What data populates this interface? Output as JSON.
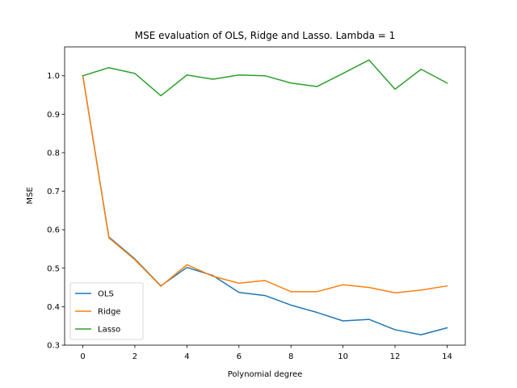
{
  "chart_data": {
    "type": "line",
    "title": "MSE evaluation of OLS, Ridge and Lasso. Lambda = 1",
    "xlabel": "Polynomial degree",
    "ylabel": "MSE",
    "x": [
      0,
      1,
      2,
      3,
      4,
      5,
      6,
      7,
      8,
      9,
      10,
      11,
      12,
      13,
      14
    ],
    "xlim": [
      -0.7,
      14.7
    ],
    "ylim": [
      0.3,
      1.075
    ],
    "xticks": [
      0,
      2,
      4,
      6,
      8,
      10,
      12,
      14
    ],
    "yticks": [
      0.3,
      0.4,
      0.5,
      0.6,
      0.7,
      0.8,
      0.9,
      1.0
    ],
    "grid": false,
    "legend_position": "lower-left",
    "series": [
      {
        "name": "OLS",
        "color": "#1f77b4",
        "values": [
          1.0,
          0.581,
          0.524,
          0.454,
          0.502,
          0.481,
          0.437,
          0.429,
          0.404,
          0.385,
          0.363,
          0.367,
          0.34,
          0.327,
          0.345
        ]
      },
      {
        "name": "Ridge",
        "color": "#ff7f0e",
        "values": [
          1.0,
          0.579,
          0.522,
          0.453,
          0.509,
          0.479,
          0.461,
          0.468,
          0.439,
          0.439,
          0.457,
          0.45,
          0.436,
          0.443,
          0.454
        ]
      },
      {
        "name": "Lasso",
        "color": "#2ca02c",
        "values": [
          1.0,
          1.021,
          1.006,
          0.948,
          1.002,
          0.991,
          1.002,
          1.0,
          0.981,
          0.972,
          1.006,
          1.041,
          0.965,
          1.017,
          0.981
        ]
      }
    ]
  }
}
